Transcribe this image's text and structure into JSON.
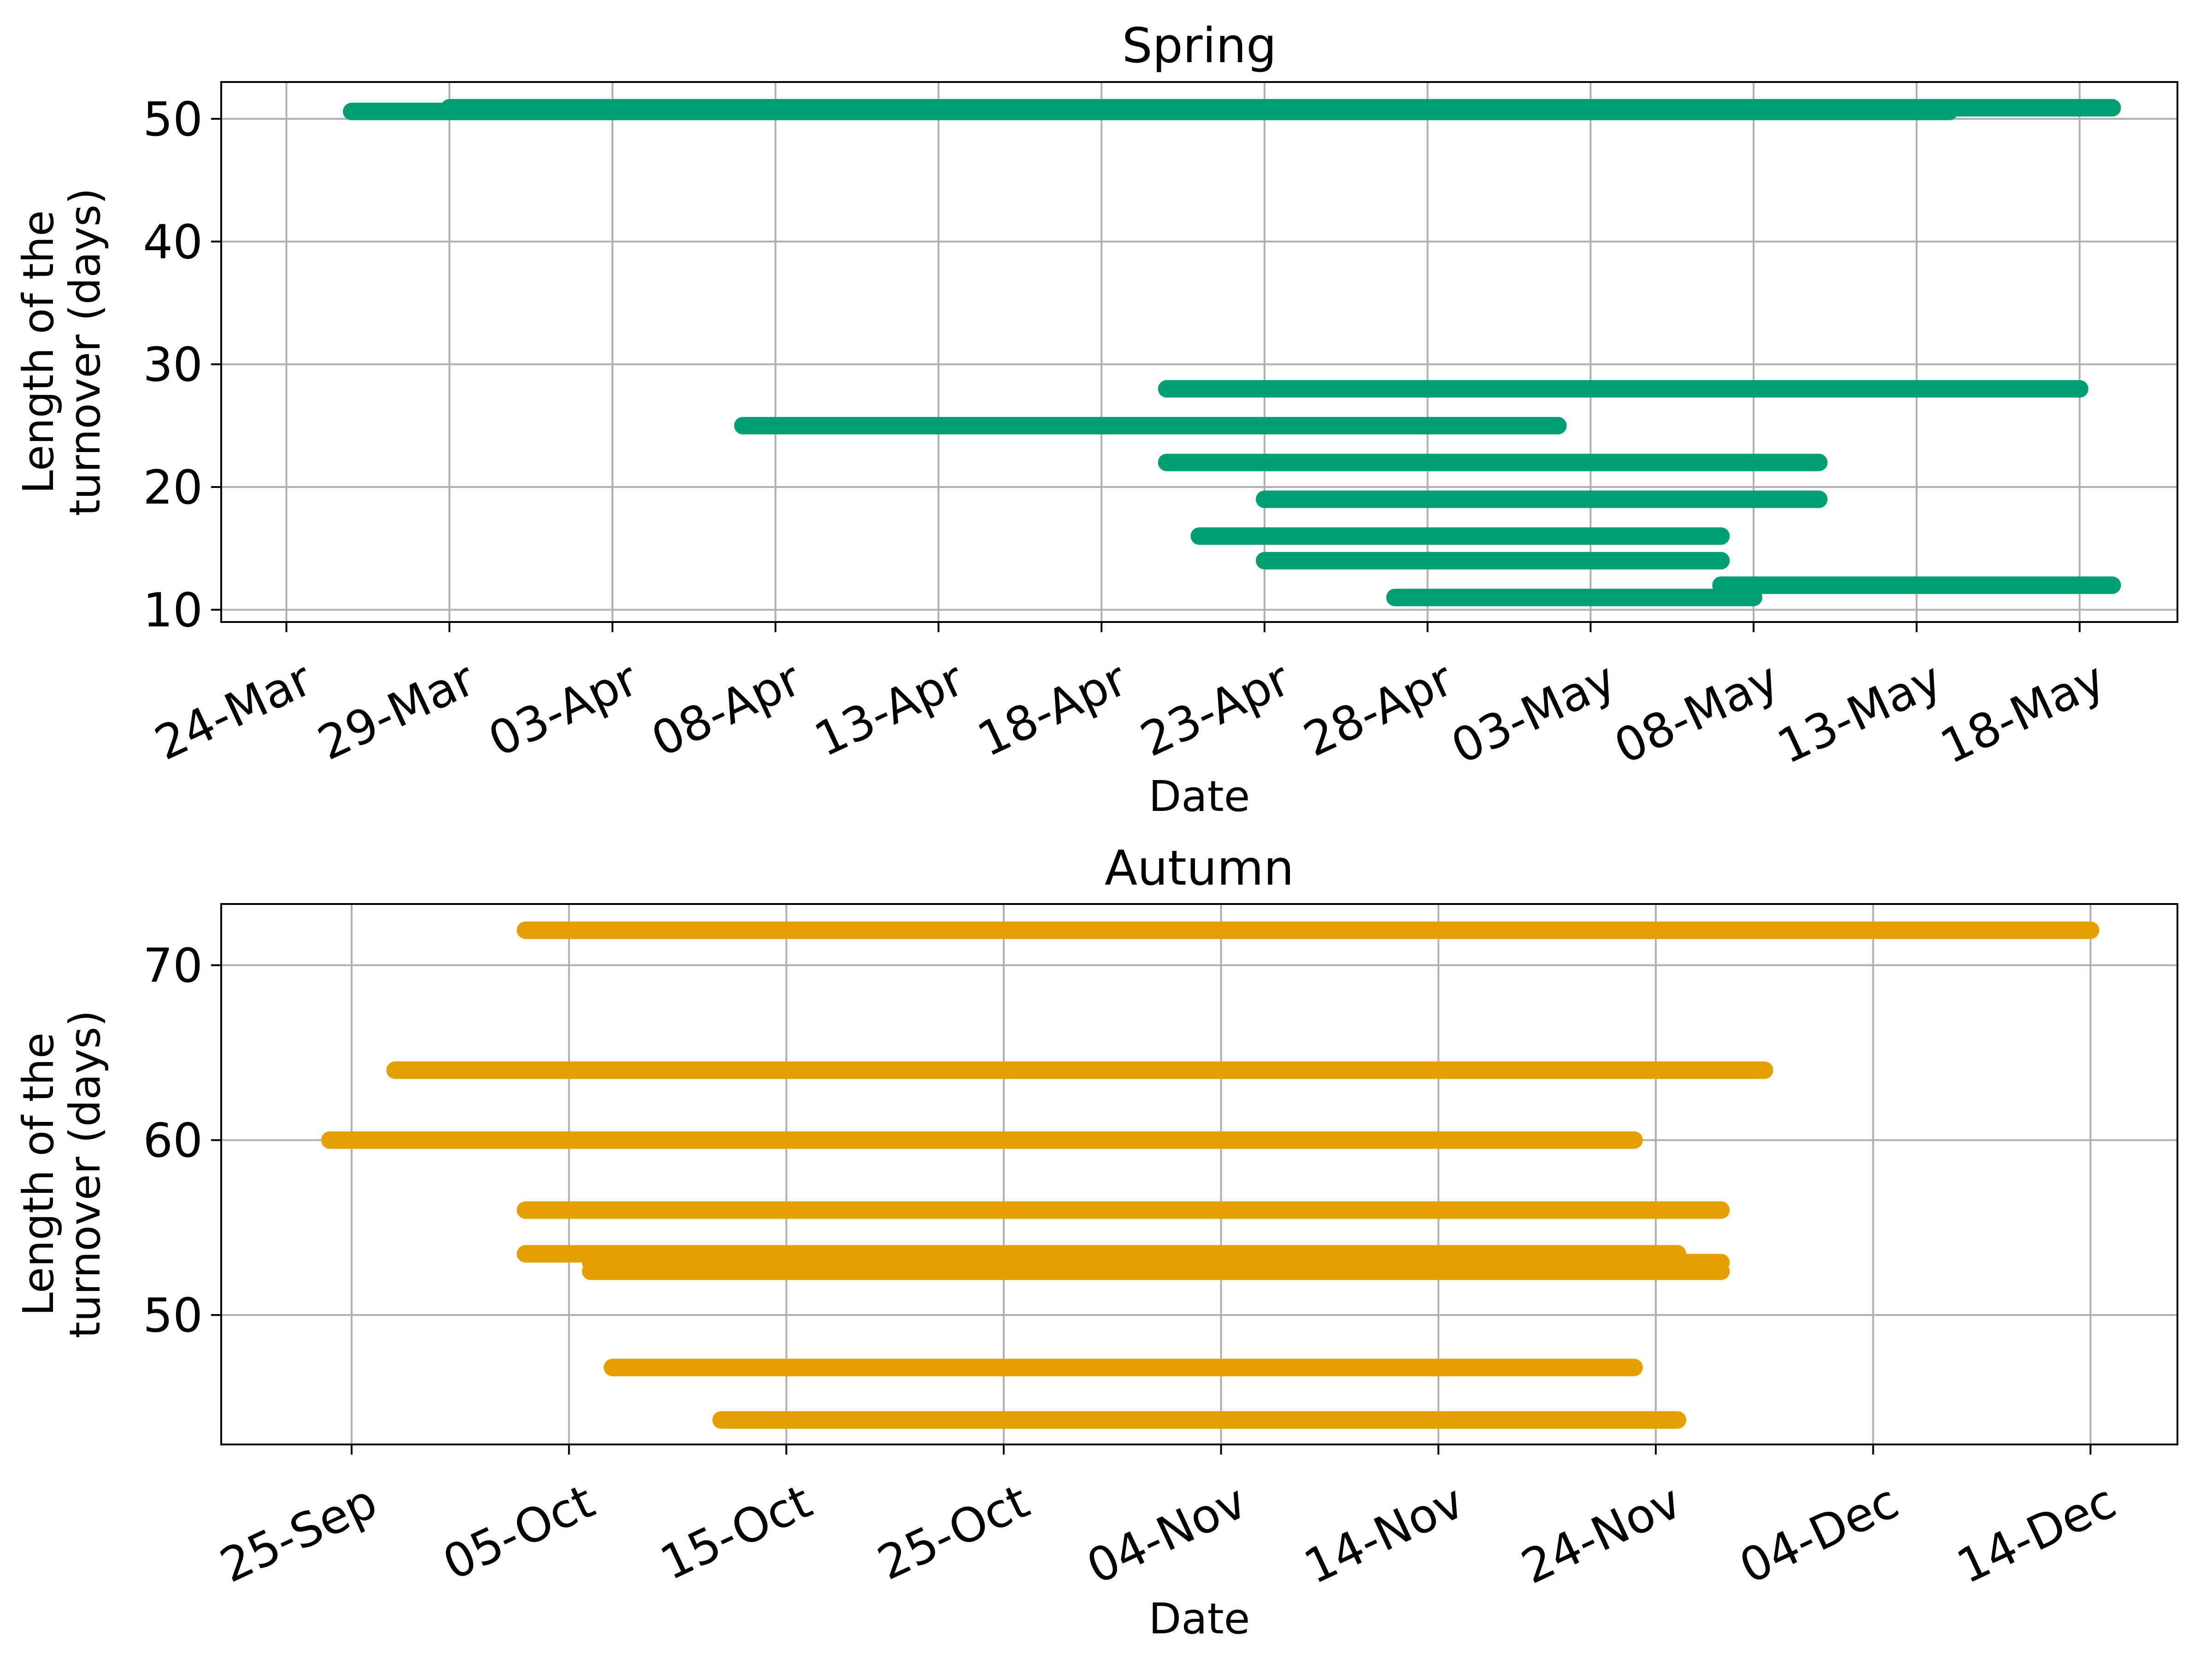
{
  "chart_data": [
    {
      "type": "line",
      "title": "Spring",
      "xlabel": "Date",
      "ylabel": "Length of the\nturnover (days)",
      "color": "#009E73",
      "xlim": [
        "2023-03-22",
        "2023-05-21"
      ],
      "ylim": [
        9,
        53
      ],
      "x_ticks": [
        "24-Mar",
        "29-Mar",
        "03-Apr",
        "08-Apr",
        "13-Apr",
        "18-Apr",
        "23-Apr",
        "28-Apr",
        "03-May",
        "08-May",
        "13-May",
        "18-May"
      ],
      "x_tick_dates": [
        "2023-03-24",
        "2023-03-29",
        "2023-04-03",
        "2023-04-08",
        "2023-04-13",
        "2023-04-18",
        "2023-04-23",
        "2023-04-28",
        "2023-05-03",
        "2023-05-08",
        "2023-05-13",
        "2023-05-18"
      ],
      "y_ticks": [
        10,
        20,
        30,
        40,
        50
      ],
      "grid": true,
      "series": [
        {
          "start": "2023-03-26",
          "end": "2023-05-14",
          "y": 50.6
        },
        {
          "start": "2023-03-29",
          "end": "2023-05-19",
          "y": 50.9
        },
        {
          "start": "2023-04-07",
          "end": "2023-05-02",
          "y": 25
        },
        {
          "start": "2023-04-20",
          "end": "2023-05-18",
          "y": 28
        },
        {
          "start": "2023-04-20",
          "end": "2023-05-10",
          "y": 22
        },
        {
          "start": "2023-04-23",
          "end": "2023-05-10",
          "y": 19
        },
        {
          "start": "2023-04-21",
          "end": "2023-05-07",
          "y": 16
        },
        {
          "start": "2023-04-23",
          "end": "2023-05-07",
          "y": 14
        },
        {
          "start": "2023-04-27",
          "end": "2023-05-08",
          "y": 11
        },
        {
          "start": "2023-05-07",
          "end": "2023-05-19",
          "y": 12
        }
      ]
    },
    {
      "type": "line",
      "title": "Autumn",
      "xlabel": "Date",
      "ylabel": "Length of the\nturnover (days)",
      "color": "#E69F00",
      "xlim": [
        "2023-09-19",
        "2023-12-18"
      ],
      "ylim": [
        42.6,
        73.5
      ],
      "x_ticks": [
        "25-Sep",
        "05-Oct",
        "15-Oct",
        "25-Oct",
        "04-Nov",
        "14-Nov",
        "24-Nov",
        "04-Dec",
        "14-Dec"
      ],
      "x_tick_dates": [
        "2023-09-25",
        "2023-10-05",
        "2023-10-15",
        "2023-10-25",
        "2023-11-04",
        "2023-11-14",
        "2023-11-24",
        "2023-12-04",
        "2023-12-14"
      ],
      "y_ticks": [
        50,
        60,
        70
      ],
      "grid": true,
      "series": [
        {
          "start": "2023-10-03",
          "end": "2023-12-14",
          "y": 72
        },
        {
          "start": "2023-09-27",
          "end": "2023-11-29",
          "y": 64
        },
        {
          "start": "2023-09-24",
          "end": "2023-11-23",
          "y": 60
        },
        {
          "start": "2023-10-03",
          "end": "2023-11-27",
          "y": 56
        },
        {
          "start": "2023-10-03",
          "end": "2023-11-25",
          "y": 53.5
        },
        {
          "start": "2023-10-06",
          "end": "2023-11-27",
          "y": 53
        },
        {
          "start": "2023-10-06",
          "end": "2023-11-27",
          "y": 52.5
        },
        {
          "start": "2023-10-07",
          "end": "2023-11-23",
          "y": 47
        },
        {
          "start": "2023-10-12",
          "end": "2023-11-25",
          "y": 44
        }
      ]
    }
  ]
}
